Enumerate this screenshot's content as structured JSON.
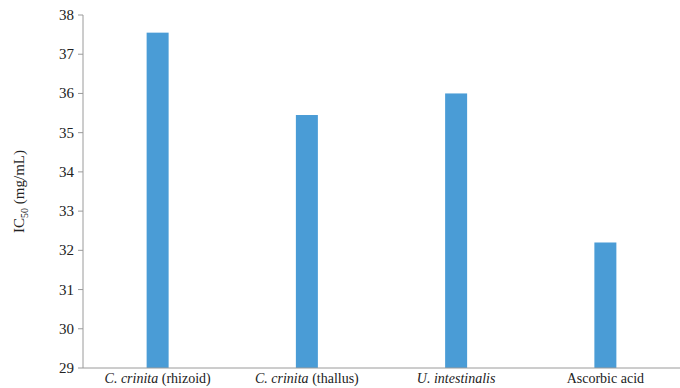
{
  "chart_data": {
    "type": "bar",
    "y_label": "IC50 (mg/mL)",
    "categories": [
      "C. crinita (rhizoid)",
      "C. crinita (thallus)",
      "U. intestinalis",
      "Ascorbic acid"
    ],
    "values": [
      37.55,
      35.45,
      36.0,
      32.2
    ],
    "color": "#4a9cd6",
    "ylim": [
      29,
      38
    ],
    "yticks": [
      29,
      30,
      31,
      32,
      33,
      34,
      35,
      36,
      37,
      38
    ],
    "grid": false
  }
}
